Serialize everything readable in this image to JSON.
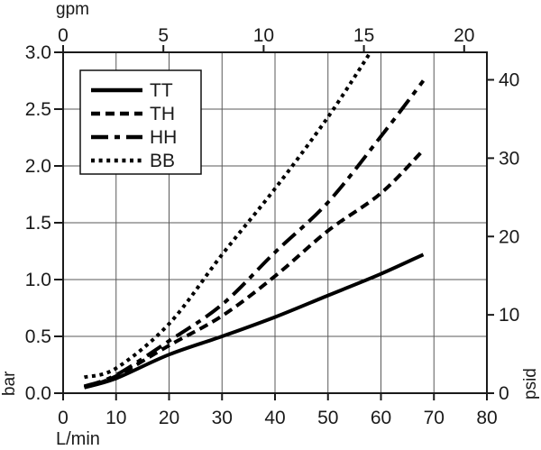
{
  "figure": {
    "type": "pressure-drop-flow-curves",
    "background": "#ffffff"
  },
  "colors": {
    "curve": "#000000",
    "grid": "#595959",
    "axis": "#1a1a1a",
    "text": "#1a1a1a",
    "legend_bg": "#ffffff",
    "legend_border": "#111111"
  },
  "chart_data": {
    "type": "line",
    "title": "",
    "x_axis_bottom": {
      "label": "L/min",
      "range": [
        0,
        80
      ],
      "ticks": [
        0,
        10,
        20,
        30,
        40,
        50,
        60,
        70,
        80
      ]
    },
    "x_axis_top": {
      "label": "gpm",
      "ticks": [
        0,
        5,
        10,
        15,
        20
      ],
      "lpm_per_gpm": 3.78541
    },
    "y_axis_left": {
      "label": "bar",
      "range": [
        0,
        3.0
      ],
      "ticks": [
        0.0,
        0.5,
        1.0,
        1.5,
        2.0,
        2.5,
        3.0
      ],
      "decimals": 1
    },
    "y_axis_right": {
      "label": "psid",
      "ticks": [
        0,
        10,
        20,
        30,
        40
      ],
      "psid_per_bar": 14.5038
    },
    "grid": {
      "x_step_lpm": 10,
      "y_step_bar": 0.5,
      "on": true
    },
    "legend": {
      "position": "top-left",
      "entries": [
        "TT",
        "TH",
        "HH",
        "BB"
      ]
    },
    "series": [
      {
        "name": "TT",
        "style": "solid",
        "points": [
          [
            4,
            0.05
          ],
          [
            10,
            0.13
          ],
          [
            20,
            0.34
          ],
          [
            30,
            0.5
          ],
          [
            40,
            0.67
          ],
          [
            50,
            0.86
          ],
          [
            60,
            1.05
          ],
          [
            68,
            1.22
          ]
        ]
      },
      {
        "name": "TH",
        "style": "dashed",
        "points": [
          [
            4,
            0.05
          ],
          [
            10,
            0.15
          ],
          [
            20,
            0.42
          ],
          [
            30,
            0.68
          ],
          [
            40,
            1.03
          ],
          [
            50,
            1.43
          ],
          [
            60,
            1.76
          ],
          [
            68,
            2.14
          ]
        ]
      },
      {
        "name": "HH",
        "style": "dash-dot",
        "points": [
          [
            4,
            0.06
          ],
          [
            10,
            0.16
          ],
          [
            20,
            0.46
          ],
          [
            30,
            0.78
          ],
          [
            40,
            1.24
          ],
          [
            50,
            1.68
          ],
          [
            60,
            2.26
          ],
          [
            68,
            2.75
          ]
        ]
      },
      {
        "name": "BB",
        "style": "dotted",
        "points": [
          [
            4,
            0.14
          ],
          [
            10,
            0.22
          ],
          [
            20,
            0.61
          ],
          [
            30,
            1.22
          ],
          [
            40,
            1.8
          ],
          [
            50,
            2.43
          ],
          [
            58,
            3.0
          ]
        ]
      }
    ]
  }
}
